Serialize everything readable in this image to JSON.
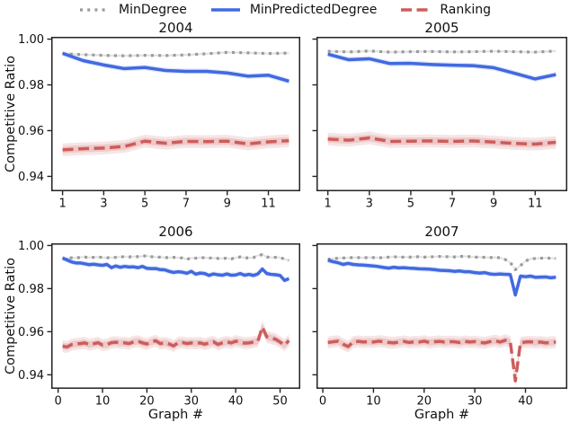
{
  "figure": {
    "background": "#ffffff"
  },
  "legend": {
    "items": [
      {
        "label": "MinDegree",
        "color": "#9a9a9a",
        "dash": "3 5.2",
        "width": 3.2
      },
      {
        "label": "MinPredictedDegree",
        "color": "#4169E1",
        "dash": "",
        "width": 3.5
      },
      {
        "label": "Ranking",
        "color": "#CD5C5C",
        "dash": "12 5.5",
        "width": 3.5
      }
    ]
  },
  "axes": {
    "ylabel": "Competitive Ratio",
    "ylim": [
      0.9335,
      1.001
    ],
    "yticks": [
      {
        "value": 1.0,
        "label": "1.00"
      },
      {
        "value": 0.98,
        "label": "0.98"
      },
      {
        "value": 0.96,
        "label": "0.96"
      },
      {
        "value": 0.94,
        "label": "0.94"
      }
    ]
  },
  "chart_data": [
    {
      "type": "line",
      "title": "2004",
      "xlabel": "",
      "x_start": 1,
      "xlim": [
        0.45,
        12.55
      ],
      "xticks": [
        1,
        3,
        5,
        7,
        9,
        11
      ],
      "ytick_labels": true,
      "series": [
        {
          "name": "MinDegree",
          "band": 0.0005,
          "values": [
            0.9936,
            0.9932,
            0.9929,
            0.9927,
            0.9929,
            0.9928,
            0.9931,
            0.9936,
            0.9942,
            0.994,
            0.9937,
            0.9939
          ]
        },
        {
          "name": "MinPredictedDegree",
          "band": 0.0012,
          "values": [
            0.9938,
            0.9906,
            0.9887,
            0.9871,
            0.9876,
            0.9863,
            0.9859,
            0.9859,
            0.9852,
            0.9838,
            0.9842,
            0.9816
          ]
        },
        {
          "name": "Ranking",
          "band": 0.0028,
          "values": [
            0.9516,
            0.9521,
            0.9524,
            0.9531,
            0.9554,
            0.9545,
            0.9553,
            0.9552,
            0.9554,
            0.9542,
            0.9551,
            0.9556
          ]
        }
      ]
    },
    {
      "type": "line",
      "title": "2005",
      "xlabel": "",
      "x_start": 1,
      "xlim": [
        0.45,
        12.55
      ],
      "xticks": [
        1,
        3,
        5,
        7,
        9,
        11
      ],
      "ytick_labels": false,
      "series": [
        {
          "name": "MinDegree",
          "band": 0.0005,
          "values": [
            0.9947,
            0.9944,
            0.9948,
            0.9943,
            0.9945,
            0.9946,
            0.9944,
            0.9945,
            0.9947,
            0.9945,
            0.9943,
            0.9948
          ]
        },
        {
          "name": "MinPredictedDegree",
          "band": 0.0012,
          "values": [
            0.9934,
            0.991,
            0.9914,
            0.9893,
            0.9894,
            0.9889,
            0.9886,
            0.9884,
            0.9875,
            0.9851,
            0.9826,
            0.9845
          ]
        },
        {
          "name": "Ranking",
          "band": 0.0028,
          "values": [
            0.9563,
            0.9558,
            0.9568,
            0.9553,
            0.9554,
            0.9555,
            0.9553,
            0.9555,
            0.955,
            0.9544,
            0.9541,
            0.9549
          ]
        }
      ]
    },
    {
      "type": "line",
      "title": "2006",
      "xlabel": "Graph #",
      "x_start": 1,
      "xlim": [
        -1.55,
        54.55
      ],
      "xticks": [
        0,
        10,
        20,
        30,
        40,
        50
      ],
      "ytick_labels": true,
      "series": [
        {
          "name": "MinDegree",
          "band": 0.0005,
          "values": [
            0.9937,
            0.994,
            0.9943,
            0.9942,
            0.9945,
            0.9946,
            0.9944,
            0.9945,
            0.9946,
            0.9945,
            0.9943,
            0.9944,
            0.9945,
            0.9947,
            0.9948,
            0.9947,
            0.9949,
            0.9948,
            0.9951,
            0.9952,
            0.9948,
            0.9946,
            0.9946,
            0.9944,
            0.9944,
            0.9945,
            0.9943,
            0.9942,
            0.9936,
            0.9942,
            0.9941,
            0.9944,
            0.9943,
            0.9942,
            0.9942,
            0.994,
            0.994,
            0.9941,
            0.9938,
            0.9943,
            0.9947,
            0.9943,
            0.9942,
            0.9944,
            0.9954,
            0.9957,
            0.9947,
            0.9944,
            0.9945,
            0.9944,
            0.9937,
            0.9931
          ]
        },
        {
          "name": "MinPredictedDegree",
          "band": 0.0012,
          "values": [
            0.9942,
            0.9933,
            0.9924,
            0.9919,
            0.9919,
            0.9915,
            0.9911,
            0.9913,
            0.991,
            0.9908,
            0.9912,
            0.9897,
            0.9905,
            0.9899,
            0.9903,
            0.99,
            0.9901,
            0.9897,
            0.9903,
            0.9894,
            0.9893,
            0.9893,
            0.9888,
            0.9887,
            0.988,
            0.9875,
            0.9878,
            0.9876,
            0.9871,
            0.988,
            0.9867,
            0.9872,
            0.987,
            0.9861,
            0.9868,
            0.9864,
            0.9862,
            0.9868,
            0.9862,
            0.9863,
            0.987,
            0.9862,
            0.9866,
            0.9861,
            0.9868,
            0.9891,
            0.987,
            0.9866,
            0.9864,
            0.9861,
            0.9838,
            0.9846
          ]
        },
        {
          "name": "Ranking",
          "band": 0.0028,
          "values": [
            0.9533,
            0.9529,
            0.954,
            0.9543,
            0.9545,
            0.9548,
            0.954,
            0.9544,
            0.9549,
            0.9538,
            0.954,
            0.9549,
            0.9551,
            0.9548,
            0.9548,
            0.9545,
            0.9553,
            0.9556,
            0.9548,
            0.9543,
            0.9552,
            0.9558,
            0.9545,
            0.9548,
            0.9543,
            0.9534,
            0.9548,
            0.955,
            0.9545,
            0.9548,
            0.9546,
            0.9548,
            0.9542,
            0.9548,
            0.9553,
            0.9541,
            0.9548,
            0.9553,
            0.9548,
            0.9556,
            0.9552,
            0.9547,
            0.9548,
            0.9552,
            0.9556,
            0.9621,
            0.9576,
            0.957,
            0.9565,
            0.9552,
            0.9538,
            0.9559
          ]
        }
      ]
    },
    {
      "type": "line",
      "title": "2007",
      "xlabel": "Graph #",
      "x_start": 1,
      "xlim": [
        -1.25,
        48.25
      ],
      "xticks": [
        0,
        10,
        20,
        30,
        40
      ],
      "ytick_labels": false,
      "series": [
        {
          "name": "MinDegree",
          "band": 0.0005,
          "values": [
            0.9936,
            0.9938,
            0.9941,
            0.9942,
            0.9943,
            0.9944,
            0.9944,
            0.9943,
            0.9944,
            0.9944,
            0.9943,
            0.9944,
            0.9946,
            0.9948,
            0.9946,
            0.9946,
            0.9946,
            0.9947,
            0.9948,
            0.9946,
            0.9947,
            0.9948,
            0.9949,
            0.9948,
            0.9948,
            0.9947,
            0.9949,
            0.995,
            0.9948,
            0.9946,
            0.9946,
            0.9945,
            0.9944,
            0.9945,
            0.9943,
            0.9935,
            0.9921,
            0.9888,
            0.9906,
            0.9928,
            0.9938,
            0.994,
            0.9941,
            0.9942,
            0.9941,
            0.994
          ]
        },
        {
          "name": "MinPredictedDegree",
          "band": 0.0012,
          "values": [
            0.9932,
            0.9925,
            0.992,
            0.9912,
            0.9917,
            0.9912,
            0.991,
            0.9909,
            0.9907,
            0.9905,
            0.9902,
            0.9898,
            0.9895,
            0.9899,
            0.9896,
            0.9897,
            0.9895,
            0.9894,
            0.9892,
            0.9891,
            0.989,
            0.9888,
            0.9885,
            0.9884,
            0.9883,
            0.988,
            0.9882,
            0.9878,
            0.9878,
            0.9874,
            0.9872,
            0.9874,
            0.9868,
            0.9866,
            0.9868,
            0.9866,
            0.9865,
            0.977,
            0.9858,
            0.9855,
            0.9858,
            0.9852,
            0.9853,
            0.9854,
            0.985,
            0.9853
          ]
        },
        {
          "name": "Ranking",
          "band": 0.0028,
          "values": [
            0.955,
            0.9553,
            0.9556,
            0.9542,
            0.9531,
            0.9552,
            0.9555,
            0.9552,
            0.9554,
            0.9552,
            0.9556,
            0.9554,
            0.955,
            0.9548,
            0.9552,
            0.9555,
            0.955,
            0.9553,
            0.9552,
            0.9556,
            0.955,
            0.9553,
            0.9555,
            0.9552,
            0.9554,
            0.9553,
            0.955,
            0.9555,
            0.9552,
            0.9554,
            0.955,
            0.9548,
            0.9554,
            0.9558,
            0.9552,
            0.956,
            0.9553,
            0.9372,
            0.9548,
            0.9552,
            0.9553,
            0.955,
            0.9552,
            0.9548,
            0.955,
            0.9552
          ]
        }
      ]
    }
  ]
}
